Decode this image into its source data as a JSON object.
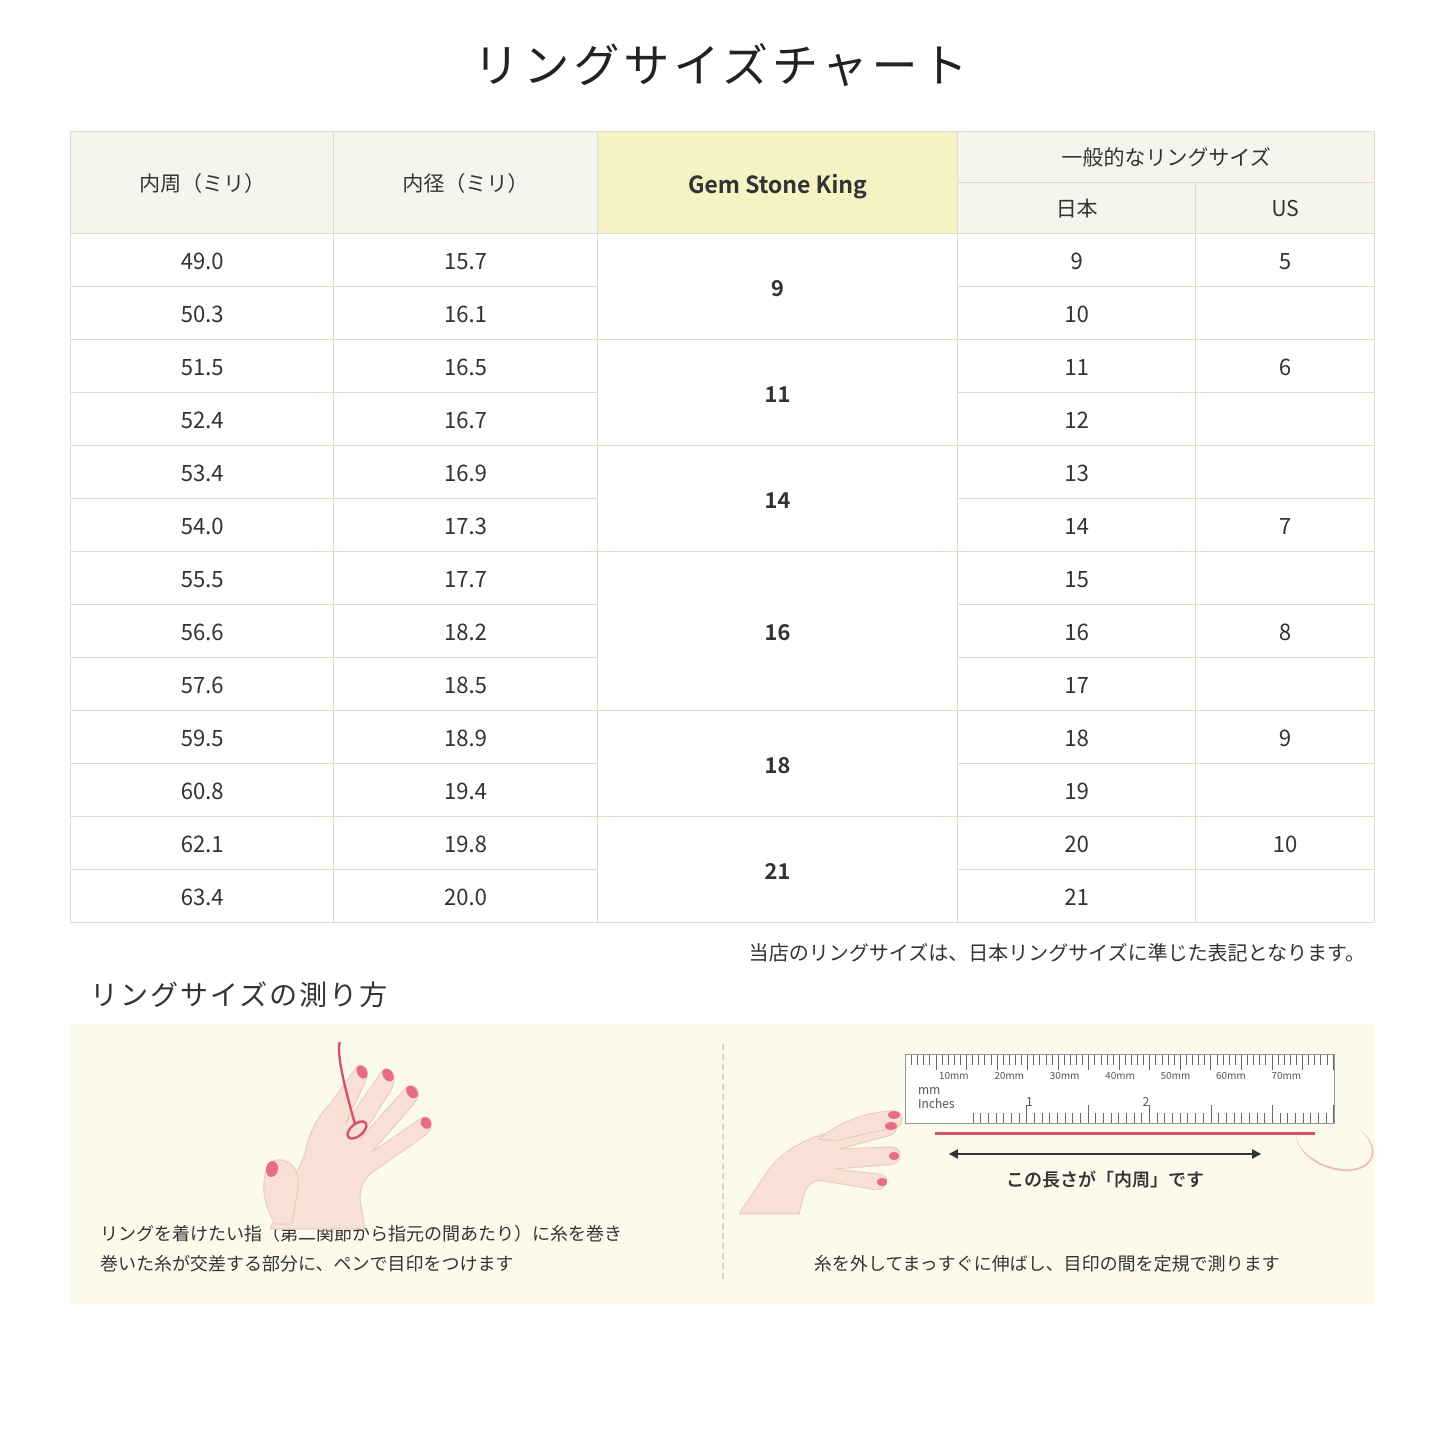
{
  "title": "リングサイズチャート",
  "table": {
    "headers": {
      "col1": "内周（ミリ）",
      "col2": "内径（ミリ）",
      "col3": "Gem Stone King",
      "col4_group": "一般的なリングサイズ",
      "col4a": "日本",
      "col4b": "US"
    },
    "rows": [
      {
        "c1": "49.0",
        "c2": "15.7",
        "gsk": "9",
        "jp": "9",
        "us": "5"
      },
      {
        "c1": "50.3",
        "c2": "16.1",
        "gsk": "",
        "jp": "10",
        "us": ""
      },
      {
        "c1": "51.5",
        "c2": "16.5",
        "gsk": "11",
        "jp": "11",
        "us": "6"
      },
      {
        "c1": "52.4",
        "c2": "16.7",
        "gsk": "",
        "jp": "12",
        "us": ""
      },
      {
        "c1": "53.4",
        "c2": "16.9",
        "gsk": "14",
        "jp": "13",
        "us": ""
      },
      {
        "c1": "54.0",
        "c2": "17.3",
        "gsk": "",
        "jp": "14",
        "us": "7"
      },
      {
        "c1": "55.5",
        "c2": "17.7",
        "gsk": "16",
        "jp": "15",
        "us": ""
      },
      {
        "c1": "56.6",
        "c2": "18.2",
        "gsk": "",
        "jp": "16",
        "us": "8"
      },
      {
        "c1": "57.6",
        "c2": "18.5",
        "gsk": "",
        "jp": "17",
        "us": ""
      },
      {
        "c1": "59.5",
        "c2": "18.9",
        "gsk": "18",
        "jp": "18",
        "us": "9"
      },
      {
        "c1": "60.8",
        "c2": "19.4",
        "gsk": "",
        "jp": "19",
        "us": ""
      },
      {
        "c1": "62.1",
        "c2": "19.8",
        "gsk": "21",
        "jp": "20",
        "us": "10"
      },
      {
        "c1": "63.4",
        "c2": "20.0",
        "gsk": "",
        "jp": "21",
        "us": ""
      }
    ],
    "gsk_groups": [
      {
        "value": "9",
        "span": 2
      },
      {
        "value": "11",
        "span": 2
      },
      {
        "value": "14",
        "span": 2
      },
      {
        "value": "16",
        "span": 3
      },
      {
        "value": "18",
        "span": 2
      },
      {
        "value": "21",
        "span": 2
      }
    ]
  },
  "note": "当店のリングサイズは、日本リングサイズに準じた表記となります。",
  "subtitle": "リングサイズの測り方",
  "instructions": {
    "left_caption": "リングを着けたい指（第二関節から指元の間あたり）に糸を巻き\n巻いた糸が交差する部分に、ペンで目印をつけます",
    "right_caption": "糸を外してまっすぐに伸ばし、目印の間を定規で測ります",
    "measure_label": "この長さが「内周」です",
    "ruler": {
      "mm_labels": [
        "10mm",
        "20mm",
        "30mm",
        "40mm",
        "50mm",
        "60mm",
        "70mm"
      ],
      "mm_text": "mm",
      "in_text": "Inches",
      "in_labels": [
        "1",
        "2"
      ]
    }
  },
  "colors": {
    "border": "#e0dccc",
    "header_bg": "#f6f5ed",
    "highlight_bg": "#f5f3c3",
    "panel_bg": "#fcfaea",
    "thread": "#d6526a",
    "skin": "#f9e0d6",
    "nail": "#e86b8a"
  }
}
